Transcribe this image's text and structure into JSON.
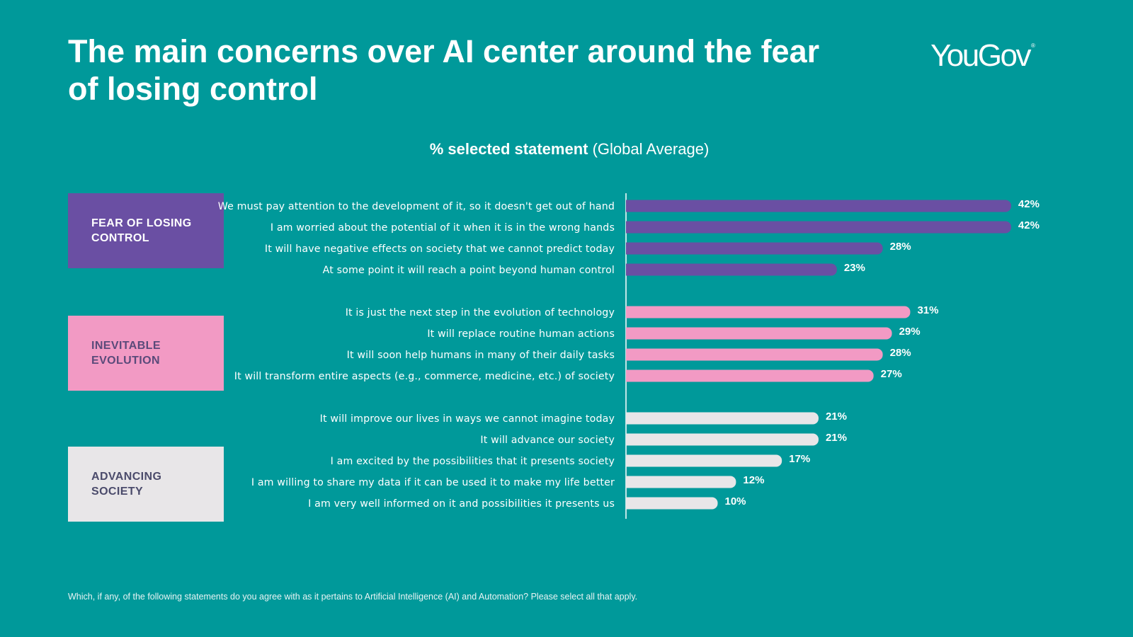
{
  "title": "The main concerns over AI center around the fear of losing control",
  "logo": {
    "text": "YouGov",
    "mark": "®"
  },
  "subtitle": {
    "bold": "% selected statement",
    "normal": " (Global Average)"
  },
  "groups": [
    {
      "label": "FEAR OF LOSING\nCONTROL",
      "color": "#6a4fa3",
      "text_color": "#ffffff"
    },
    {
      "label": "INEVITABLE\nEVOLUTION",
      "color": "#f29ac4",
      "text_color": "#5a4a7a"
    },
    {
      "label": "ADVANCING\nSOCIETY",
      "color": "#e8e6e8",
      "text_color": "#4b4b6b"
    }
  ],
  "chart_data": {
    "type": "bar",
    "orientation": "horizontal",
    "title": "% selected statement (Global Average)",
    "unit": "%",
    "xlim": [
      0,
      45
    ],
    "items": [
      {
        "label": "We must pay attention to the development of it, so it doesn't get out of hand",
        "value": 42,
        "group": 0
      },
      {
        "label": "I am worried about the potential of it when it is in the wrong hands",
        "value": 42,
        "group": 0
      },
      {
        "label": "It will have negative effects on society that we cannot predict today",
        "value": 28,
        "group": 0
      },
      {
        "label": "At some point it will reach a point beyond human control",
        "value": 23,
        "group": 0
      },
      {
        "label": "It is just the next step in the evolution of technology",
        "value": 31,
        "group": 1
      },
      {
        "label": "It will replace routine human actions",
        "value": 29,
        "group": 1
      },
      {
        "label": "It will soon help humans in many of their daily tasks",
        "value": 28,
        "group": 1
      },
      {
        "label": "It will transform entire aspects (e.g., commerce, medicine, etc.) of society",
        "value": 27,
        "group": 1
      },
      {
        "label": "It will improve our lives in ways we cannot imagine today",
        "value": 21,
        "group": 2
      },
      {
        "label": "It will advance our society",
        "value": 21,
        "group": 2
      },
      {
        "label": "I am excited by the possibilities that it presents society",
        "value": 17,
        "group": 2
      },
      {
        "label": "I am willing to share my data if it can be used it to make my life better",
        "value": 12,
        "group": 2
      },
      {
        "label": "I am very well informed on it and possibilities it presents us",
        "value": 10,
        "group": 2
      }
    ]
  },
  "footnote": "Which, if any, of the following statements do you agree with as it pertains to Artificial Intelligence (AI) and Automation? Please select all that apply."
}
